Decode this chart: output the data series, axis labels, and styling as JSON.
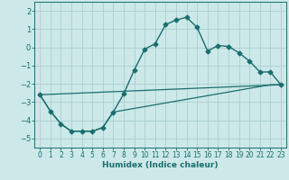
{
  "title": "",
  "xlabel": "Humidex (Indice chaleur)",
  "ylabel": "",
  "bg_color": "#cce8e8",
  "line_color": "#1a6e6e",
  "grid_color": "#aacfcf",
  "xlim": [
    -0.5,
    23.5
  ],
  "ylim": [
    -5.5,
    2.5
  ],
  "xticks": [
    0,
    1,
    2,
    3,
    4,
    5,
    6,
    7,
    8,
    9,
    10,
    11,
    12,
    13,
    14,
    15,
    16,
    17,
    18,
    19,
    20,
    21,
    22,
    23
  ],
  "yticks": [
    -5,
    -4,
    -3,
    -2,
    -1,
    0,
    1,
    2
  ],
  "series": [
    {
      "x": [
        0,
        1,
        2,
        3,
        4,
        5,
        6,
        7,
        8,
        9,
        10,
        11,
        12,
        13,
        14,
        15,
        16,
        17,
        18,
        19,
        20,
        21,
        22,
        23
      ],
      "y": [
        -2.6,
        -3.5,
        -4.2,
        -4.6,
        -4.6,
        -4.6,
        -4.4,
        -3.55,
        -2.55,
        -1.25,
        -0.1,
        0.2,
        1.25,
        1.5,
        1.65,
        1.1,
        -0.2,
        0.1,
        0.05,
        -0.3,
        -0.75,
        -1.35,
        -1.35,
        -2.05
      ],
      "marker": "D",
      "markersize": 2.5,
      "linewidth": 1.0
    },
    {
      "x": [
        0,
        1,
        2,
        3,
        4,
        5,
        6,
        7,
        22,
        23
      ],
      "y": [
        -2.6,
        -3.5,
        -4.2,
        -4.6,
        -4.6,
        -4.6,
        -4.4,
        -3.55,
        -2.05,
        -2.05
      ],
      "marker": null,
      "markersize": 0,
      "linewidth": 0.9
    },
    {
      "x": [
        0,
        23
      ],
      "y": [
        -2.6,
        -2.05
      ],
      "marker": null,
      "markersize": 0,
      "linewidth": 0.9
    }
  ]
}
